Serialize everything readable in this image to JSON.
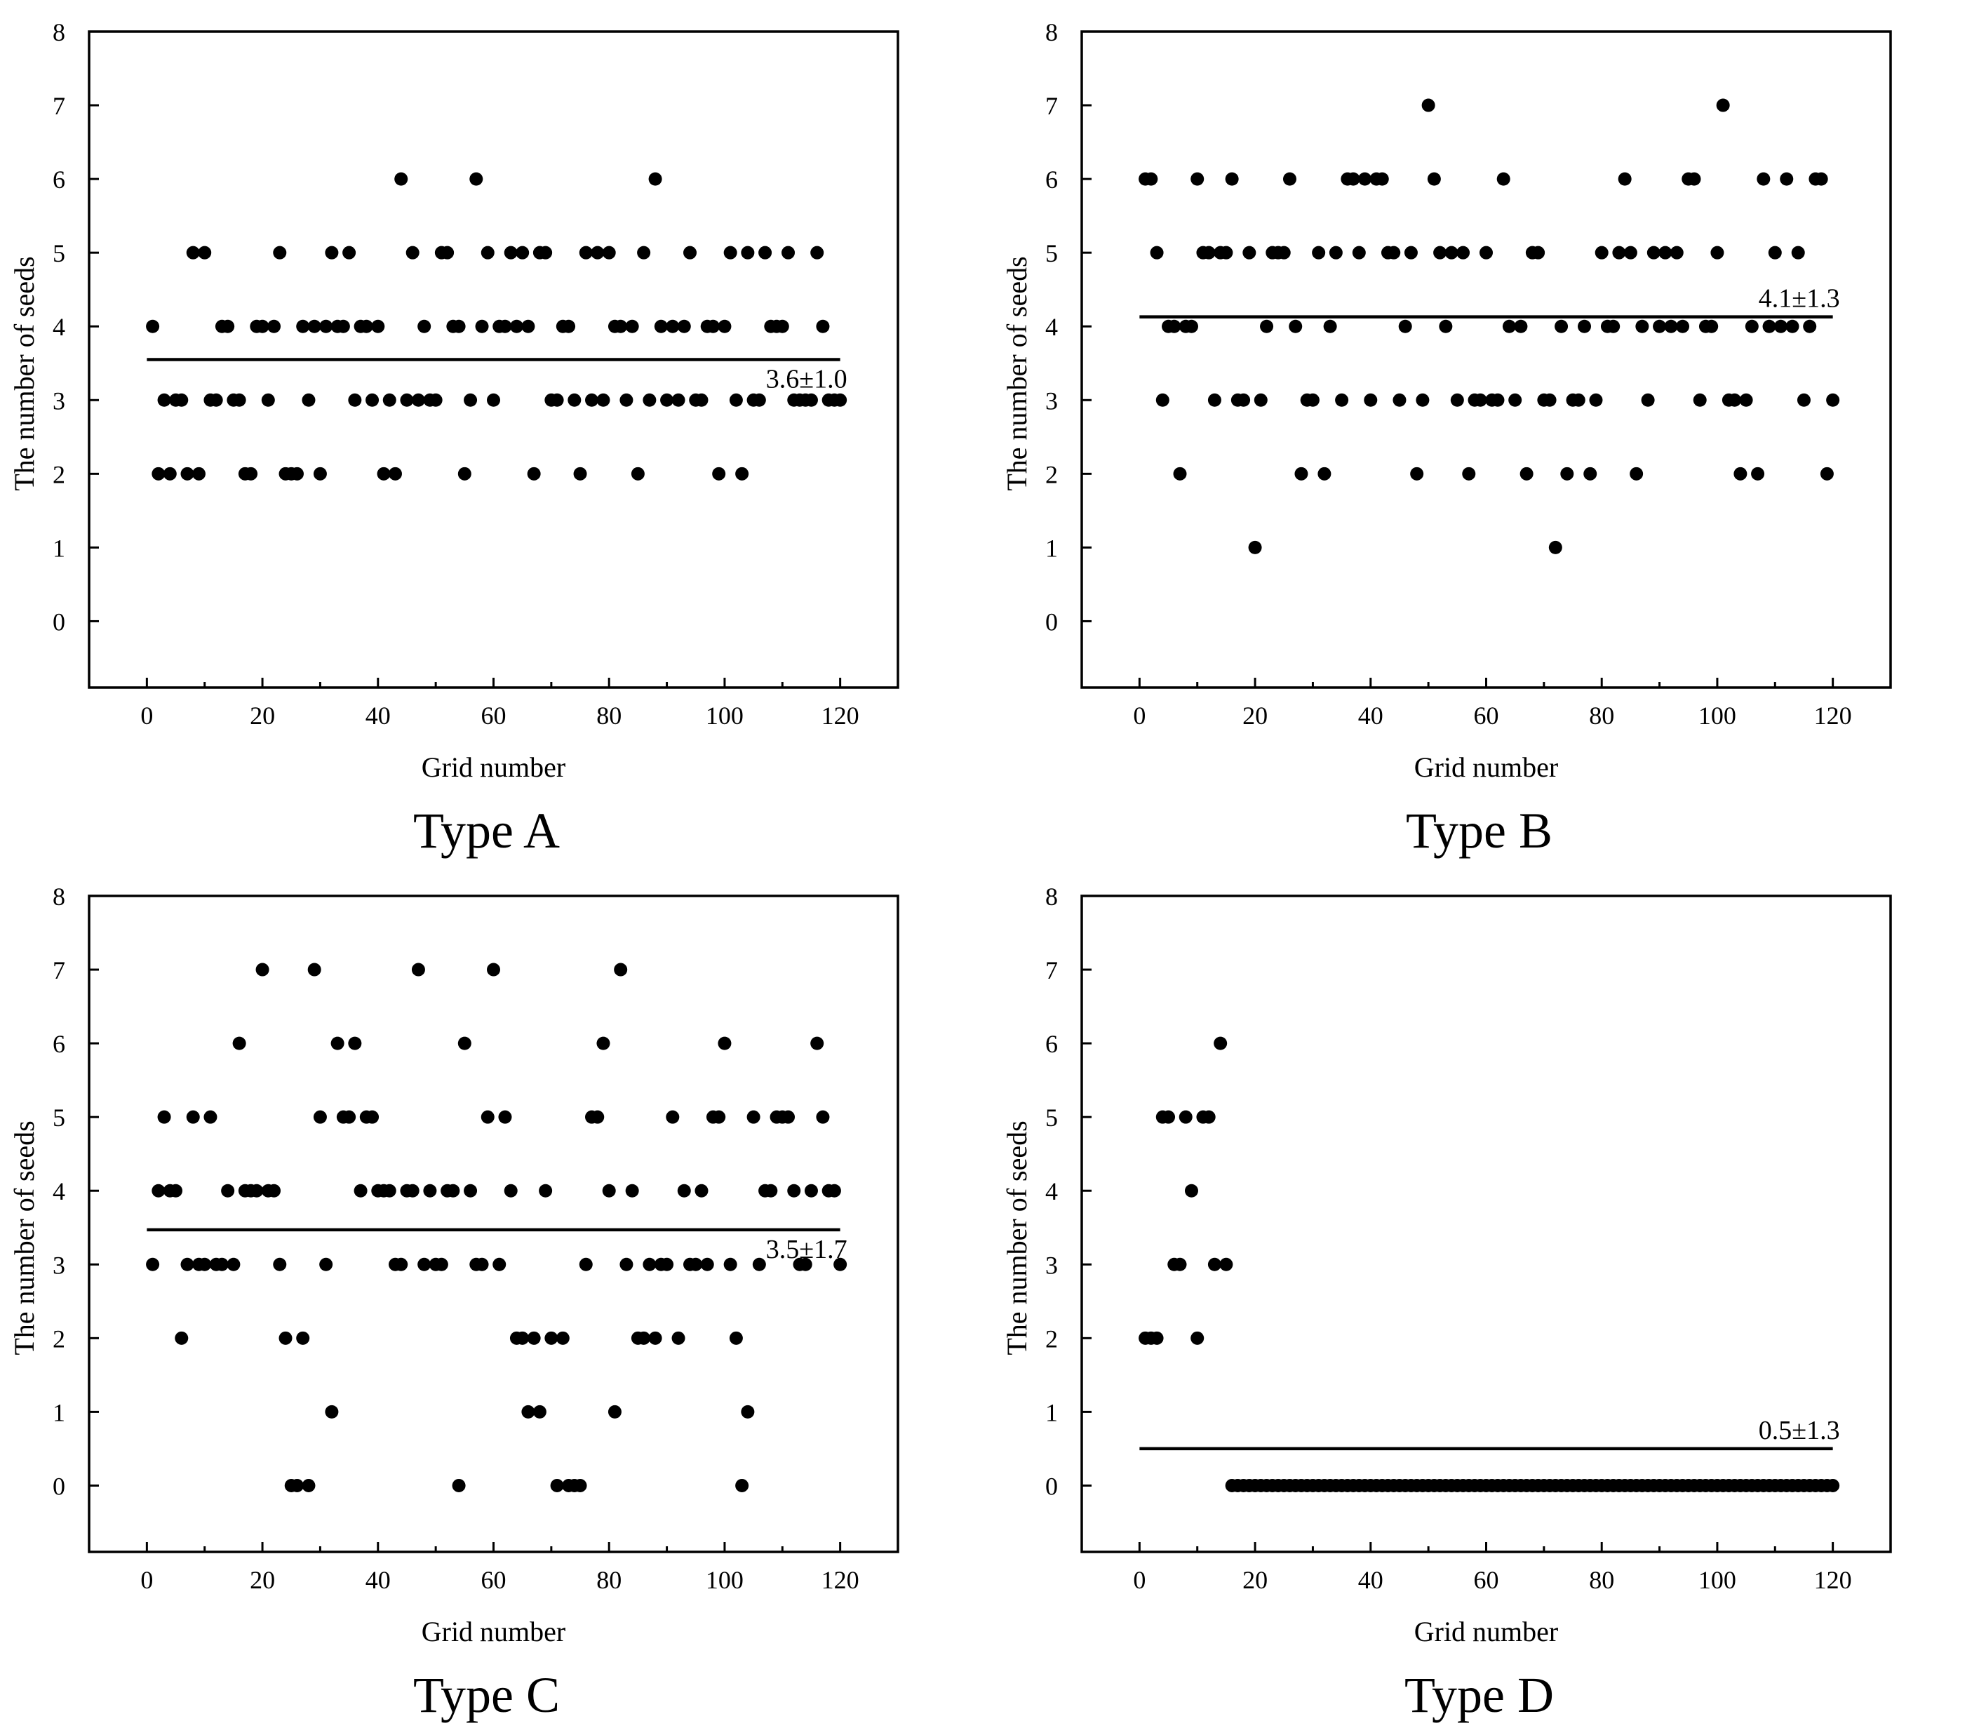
{
  "chart_data": [
    {
      "type": "scatter",
      "title": "Type A",
      "xlabel": "Grid number",
      "ylabel": "The number of seeds",
      "xlim": [
        -10,
        130
      ],
      "ylim": [
        -0.9,
        8
      ],
      "xticks": [
        "0",
        "20",
        "40",
        "60",
        "80",
        "100",
        "120"
      ],
      "yticks": [
        "0",
        "1",
        "2",
        "3",
        "4",
        "5",
        "6",
        "7",
        "8"
      ],
      "mean": 3.55,
      "annotation": "3.6±1.0",
      "x": [
        1,
        2,
        3,
        4,
        5,
        6,
        7,
        8,
        9,
        10,
        11,
        12,
        13,
        14,
        15,
        16,
        17,
        18,
        19,
        20,
        21,
        22,
        23,
        24,
        25,
        26,
        27,
        28,
        29,
        30,
        31,
        32,
        33,
        34,
        35,
        36,
        37,
        38,
        39,
        40,
        41,
        42,
        43,
        44,
        45,
        46,
        47,
        48,
        49,
        50,
        51,
        52,
        53,
        54,
        55,
        56,
        57,
        58,
        59,
        60,
        61,
        62,
        63,
        64,
        65,
        66,
        67,
        68,
        69,
        70,
        71,
        72,
        73,
        74,
        75,
        76,
        77,
        78,
        79,
        80,
        81,
        82,
        83,
        84,
        85,
        86,
        87,
        88,
        89,
        90,
        91,
        92,
        93,
        94,
        95,
        96,
        97,
        98,
        99,
        100,
        101,
        102,
        103,
        104,
        105,
        106,
        107,
        108,
        109,
        110,
        111,
        112,
        113,
        114,
        115,
        116,
        117,
        118,
        119,
        120
      ],
      "y": [
        4,
        2,
        3,
        2,
        3,
        3,
        2,
        5,
        2,
        5,
        3,
        3,
        4,
        4,
        3,
        3,
        2,
        2,
        4,
        4,
        3,
        4,
        5,
        2,
        2,
        2,
        4,
        3,
        4,
        2,
        4,
        5,
        4,
        4,
        5,
        3,
        4,
        4,
        3,
        4,
        2,
        3,
        2,
        6,
        3,
        5,
        3,
        4,
        3,
        3,
        5,
        5,
        4,
        4,
        2,
        3,
        6,
        4,
        5,
        3,
        4,
        4,
        5,
        4,
        5,
        4,
        2,
        5,
        5,
        3,
        3,
        4,
        4,
        3,
        2,
        5,
        3,
        5,
        3,
        5,
        4,
        4,
        3,
        4,
        2,
        5,
        3,
        6,
        4,
        3,
        4,
        3,
        4,
        5,
        3,
        3,
        4,
        4,
        2,
        4,
        5,
        3,
        2,
        5,
        3,
        3,
        5,
        4,
        4,
        4,
        5,
        3,
        3,
        3,
        3,
        5,
        4,
        3,
        3,
        3
      ]
    },
    {
      "type": "scatter",
      "title": "Type B",
      "xlabel": "Grid number",
      "ylabel": "The number of seeds",
      "xlim": [
        -10,
        130
      ],
      "ylim": [
        -0.9,
        8
      ],
      "xticks": [
        "0",
        "20",
        "40",
        "60",
        "80",
        "100",
        "120"
      ],
      "yticks": [
        "0",
        "1",
        "2",
        "3",
        "4",
        "5",
        "6",
        "7",
        "8"
      ],
      "mean": 4.13,
      "annotation": "4.1±1.3",
      "x": [
        1,
        2,
        3,
        4,
        5,
        6,
        7,
        8,
        9,
        10,
        11,
        12,
        13,
        14,
        15,
        16,
        17,
        18,
        19,
        20,
        21,
        22,
        23,
        24,
        25,
        26,
        27,
        28,
        29,
        30,
        31,
        32,
        33,
        34,
        35,
        36,
        37,
        38,
        39,
        40,
        41,
        42,
        43,
        44,
        45,
        46,
        47,
        48,
        49,
        50,
        51,
        52,
        53,
        54,
        55,
        56,
        57,
        58,
        59,
        60,
        61,
        62,
        63,
        64,
        65,
        66,
        67,
        68,
        69,
        70,
        71,
        72,
        73,
        74,
        75,
        76,
        77,
        78,
        79,
        80,
        81,
        82,
        83,
        84,
        85,
        86,
        87,
        88,
        89,
        90,
        91,
        92,
        93,
        94,
        95,
        96,
        97,
        98,
        99,
        100,
        101,
        102,
        103,
        104,
        105,
        106,
        107,
        108,
        109,
        110,
        111,
        112,
        113,
        114,
        115,
        116,
        117,
        118,
        119,
        120
      ],
      "y": [
        6,
        6,
        5,
        3,
        4,
        4,
        2,
        4,
        4,
        6,
        5,
        5,
        3,
        5,
        5,
        6,
        3,
        3,
        5,
        1,
        3,
        4,
        5,
        5,
        5,
        6,
        4,
        2,
        3,
        3,
        5,
        2,
        4,
        5,
        3,
        6,
        6,
        5,
        6,
        3,
        6,
        6,
        5,
        5,
        3,
        4,
        5,
        2,
        3,
        7,
        6,
        5,
        4,
        5,
        3,
        5,
        2,
        3,
        3,
        5,
        3,
        3,
        6,
        4,
        3,
        4,
        2,
        5,
        5,
        3,
        3,
        1,
        4,
        2,
        3,
        3,
        4,
        2,
        3,
        5,
        4,
        4,
        5,
        6,
        5,
        2,
        4,
        3,
        5,
        4,
        5,
        4,
        5,
        4,
        6,
        6,
        3,
        4,
        4,
        5,
        7,
        3,
        3,
        2,
        3,
        4,
        2,
        6,
        4,
        5,
        4,
        6,
        4,
        5,
        3,
        4,
        6,
        6,
        2,
        3
      ]
    },
    {
      "type": "scatter",
      "title": "Type C",
      "xlabel": "Grid number",
      "ylabel": "The number of seeds",
      "xlim": [
        -10,
        130
      ],
      "ylim": [
        -0.9,
        8
      ],
      "xticks": [
        "0",
        "20",
        "40",
        "60",
        "80",
        "100",
        "120"
      ],
      "yticks": [
        "0",
        "1",
        "2",
        "3",
        "4",
        "5",
        "6",
        "7",
        "8"
      ],
      "mean": 3.47,
      "annotation": "3.5±1.7",
      "x": [
        1,
        2,
        3,
        4,
        5,
        6,
        7,
        8,
        9,
        10,
        11,
        12,
        13,
        14,
        15,
        16,
        17,
        18,
        19,
        20,
        21,
        22,
        23,
        24,
        25,
        26,
        27,
        28,
        29,
        30,
        31,
        32,
        33,
        34,
        35,
        36,
        37,
        38,
        39,
        40,
        41,
        42,
        43,
        44,
        45,
        46,
        47,
        48,
        49,
        50,
        51,
        52,
        53,
        54,
        55,
        56,
        57,
        58,
        59,
        60,
        61,
        62,
        63,
        64,
        65,
        66,
        67,
        68,
        69,
        70,
        71,
        72,
        73,
        74,
        75,
        76,
        77,
        78,
        79,
        80,
        81,
        82,
        83,
        84,
        85,
        86,
        87,
        88,
        89,
        90,
        91,
        92,
        93,
        94,
        95,
        96,
        97,
        98,
        99,
        100,
        101,
        102,
        103,
        104,
        105,
        106,
        107,
        108,
        109,
        110,
        111,
        112,
        113,
        114,
        115,
        116,
        117,
        118,
        119,
        120
      ],
      "y": [
        3,
        4,
        5,
        4,
        4,
        2,
        3,
        5,
        3,
        3,
        5,
        3,
        3,
        4,
        3,
        6,
        4,
        4,
        4,
        7,
        4,
        4,
        3,
        2,
        0,
        0,
        2,
        0,
        7,
        5,
        3,
        1,
        6,
        5,
        5,
        6,
        4,
        5,
        5,
        4,
        4,
        4,
        3,
        3,
        4,
        4,
        7,
        3,
        4,
        3,
        3,
        4,
        4,
        0,
        6,
        4,
        3,
        3,
        5,
        7,
        3,
        5,
        4,
        2,
        2,
        1,
        2,
        1,
        4,
        2,
        0,
        2,
        0,
        0,
        0,
        3,
        5,
        5,
        6,
        4,
        1,
        7,
        3,
        4,
        2,
        2,
        3,
        2,
        3,
        3,
        5,
        2,
        4,
        3,
        3,
        4,
        3,
        5,
        5,
        6,
        3,
        2,
        0,
        1,
        5,
        3,
        4,
        4,
        5,
        5,
        5,
        4,
        3,
        3,
        4,
        6,
        5,
        4,
        4,
        3
      ]
    },
    {
      "type": "scatter",
      "title": "Type D",
      "xlabel": "Grid number",
      "ylabel": "The number of seeds",
      "xlim": [
        -10,
        130
      ],
      "ylim": [
        -0.9,
        8
      ],
      "xticks": [
        "0",
        "20",
        "40",
        "60",
        "80",
        "100",
        "120"
      ],
      "yticks": [
        "0",
        "1",
        "2",
        "3",
        "4",
        "5",
        "6",
        "7",
        "8"
      ],
      "mean": 0.5,
      "annotation": "0.5±1.3",
      "x": [
        1,
        2,
        3,
        4,
        5,
        6,
        7,
        8,
        9,
        10,
        11,
        12,
        13,
        14,
        15,
        16,
        17,
        18,
        19,
        20,
        21,
        22,
        23,
        24,
        25,
        26,
        27,
        28,
        29,
        30,
        31,
        32,
        33,
        34,
        35,
        36,
        37,
        38,
        39,
        40,
        41,
        42,
        43,
        44,
        45,
        46,
        47,
        48,
        49,
        50,
        51,
        52,
        53,
        54,
        55,
        56,
        57,
        58,
        59,
        60,
        61,
        62,
        63,
        64,
        65,
        66,
        67,
        68,
        69,
        70,
        71,
        72,
        73,
        74,
        75,
        76,
        77,
        78,
        79,
        80,
        81,
        82,
        83,
        84,
        85,
        86,
        87,
        88,
        89,
        90,
        91,
        92,
        93,
        94,
        95,
        96,
        97,
        98,
        99,
        100,
        101,
        102,
        103,
        104,
        105,
        106,
        107,
        108,
        109,
        110,
        111,
        112,
        113,
        114,
        115,
        116,
        117,
        118,
        119,
        120
      ],
      "y": [
        2,
        2,
        2,
        5,
        5,
        3,
        3,
        5,
        4,
        2,
        5,
        5,
        3,
        6,
        3,
        0,
        0,
        0,
        0,
        0,
        0,
        0,
        0,
        0,
        0,
        0,
        0,
        0,
        0,
        0,
        0,
        0,
        0,
        0,
        0,
        0,
        0,
        0,
        0,
        0,
        0,
        0,
        0,
        0,
        0,
        0,
        0,
        0,
        0,
        0,
        0,
        0,
        0,
        0,
        0,
        0,
        0,
        0,
        0,
        0,
        0,
        0,
        0,
        0,
        0,
        0,
        0,
        0,
        0,
        0,
        0,
        0,
        0,
        0,
        0,
        0,
        0,
        0,
        0,
        0,
        0,
        0,
        0,
        0,
        0,
        0,
        0,
        0,
        0,
        0,
        0,
        0,
        0,
        0,
        0,
        0,
        0,
        0,
        0,
        0,
        0,
        0,
        0,
        0,
        0,
        0,
        0,
        0,
        0,
        0,
        0,
        0,
        0,
        0,
        0,
        0,
        0,
        0,
        0,
        0
      ]
    }
  ]
}
